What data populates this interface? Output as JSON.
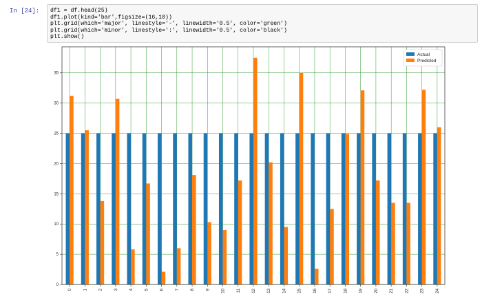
{
  "notebook": {
    "prompt": "In [24]:",
    "code_lines": [
      "df1 = df.head(25)",
      "df1.plot(kind='bar',figsize=(16,10))",
      "plt.grid(which='major', linestyle='-', linewidth='0.5', color='green')",
      "plt.grid(which='minor', linestyle=':', linewidth='0.5', color='black')",
      "plt.show()"
    ]
  },
  "chart_data": {
    "type": "bar",
    "categories": [
      "0",
      "1",
      "2",
      "3",
      "4",
      "5",
      "6",
      "7",
      "8",
      "9",
      "10",
      "11",
      "12",
      "13",
      "14",
      "15",
      "16",
      "17",
      "18",
      "19",
      "20",
      "21",
      "22",
      "23",
      "24"
    ],
    "series": [
      {
        "name": "Actual",
        "color": "#1f77b4",
        "values": [
          25,
          25,
          25,
          25,
          25,
          25,
          25,
          25,
          25,
          25,
          25,
          25,
          25,
          25,
          25,
          25,
          25,
          25,
          25,
          25,
          25,
          25,
          25,
          25,
          25
        ]
      },
      {
        "name": "Predicted",
        "color": "#ff7f0e",
        "values": [
          31.2,
          25.5,
          13.8,
          30.7,
          5.8,
          16.7,
          2.1,
          6.0,
          18.1,
          10.3,
          9.0,
          17.2,
          37.5,
          20.2,
          9.5,
          35.0,
          2.6,
          12.5,
          24.9,
          32.1,
          17.2,
          13.5,
          13.5,
          32.2,
          26.0
        ]
      }
    ],
    "yticks": [
      "0",
      "5",
      "10",
      "15",
      "20",
      "25",
      "30",
      "35"
    ],
    "ylim": [
      0,
      39.3
    ],
    "grid": true,
    "grid_major_color": "#008000",
    "legend_position": "top-right"
  }
}
